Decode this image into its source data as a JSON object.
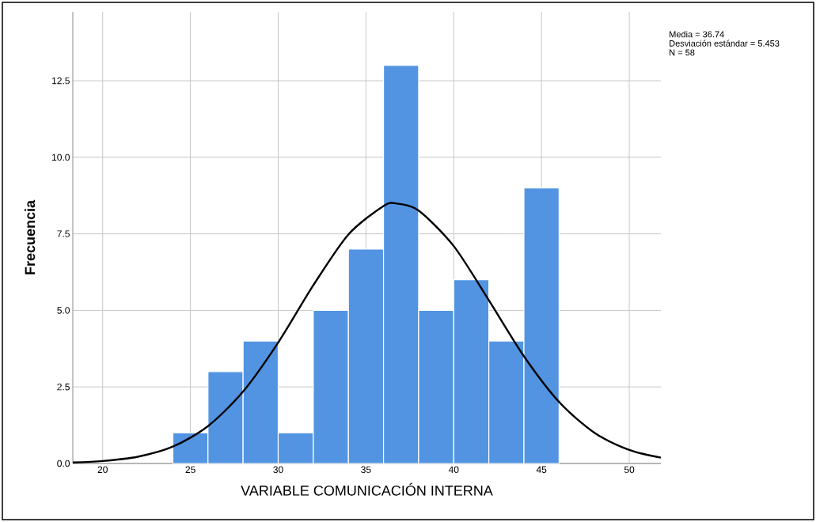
{
  "chart_data": {
    "type": "histogram",
    "xlabel": "VARIABLE COMUNICACIÓN INTERNA",
    "ylabel": "Frecuencia",
    "bins": [
      24,
      26,
      28,
      30,
      32,
      34,
      36,
      38,
      40,
      42,
      44,
      46
    ],
    "values": [
      1,
      3,
      4,
      1,
      5,
      7,
      13,
      5,
      6,
      4,
      9
    ],
    "color": "#5294e2",
    "series": [
      {
        "type": "line",
        "color": "#000000",
        "x": [
          18.3,
          20,
          22,
          24,
          26,
          28,
          30,
          32,
          34,
          36,
          36.74,
          38,
          40,
          42,
          44,
          46,
          48,
          50,
          51.8
        ],
        "values": [
          0.03,
          0.08,
          0.22,
          0.55,
          1.22,
          2.35,
          3.95,
          5.82,
          7.48,
          8.41,
          8.49,
          8.26,
          7.1,
          5.33,
          3.5,
          2.01,
          1.01,
          0.44,
          0.19
        ]
      }
    ],
    "xlim": [
      18.3,
      51.8
    ],
    "ylim": [
      0,
      14.75
    ],
    "xticks": [
      20,
      25,
      30,
      35,
      40,
      45,
      50
    ],
    "yticks": [
      {
        "value": 0,
        "label": "0.0"
      },
      {
        "value": 2.5,
        "label": "2.5"
      },
      {
        "value": 5,
        "label": "5.0"
      },
      {
        "value": 7.5,
        "label": "7.5"
      },
      {
        "value": 10,
        "label": "10.0"
      },
      {
        "value": 12.5,
        "label": "12.5"
      }
    ],
    "grid": true,
    "annotations": [
      "Media = 36.74",
      "Desviación estándar = 5.453",
      "N = 58"
    ]
  }
}
